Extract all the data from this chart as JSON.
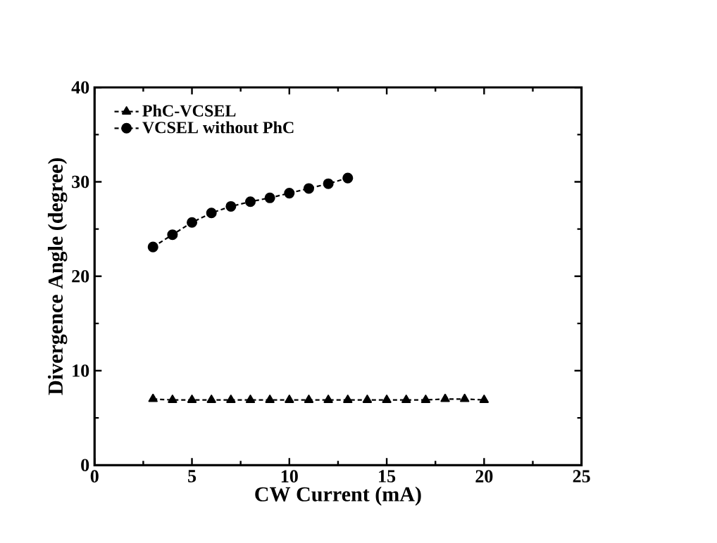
{
  "chart_data": {
    "type": "line",
    "xlabel": "CW Current (mA)",
    "ylabel": "Divergence Angle (degree)",
    "xlim": [
      0,
      25
    ],
    "xticks": [
      0,
      5,
      10,
      15,
      20,
      25
    ],
    "ylim": [
      0,
      40
    ],
    "yticks": [
      0,
      10,
      20,
      30,
      40
    ],
    "legend": "top left",
    "line_style": "dashed",
    "grid": false,
    "series": [
      {
        "name": "PhC-VCSEL",
        "color": "#000000",
        "marker": "triangle",
        "x": [
          3,
          4,
          5,
          6,
          7,
          8,
          9,
          10,
          11,
          12,
          13,
          14,
          15,
          16,
          17,
          18,
          19,
          20
        ],
        "values": [
          7.0,
          6.9,
          6.9,
          6.9,
          6.9,
          6.9,
          6.9,
          6.9,
          6.9,
          6.9,
          6.9,
          6.9,
          6.9,
          6.9,
          6.9,
          7.0,
          7.0,
          6.9
        ]
      },
      {
        "name": "VCSEL without PhC",
        "color": "#000000",
        "marker": "circle",
        "x": [
          3,
          4,
          5,
          6,
          7,
          8,
          9,
          10,
          11,
          12,
          13
        ],
        "values": [
          23.1,
          24.4,
          25.7,
          26.7,
          27.4,
          27.9,
          28.3,
          28.8,
          29.3,
          29.8,
          30.4
        ]
      }
    ]
  }
}
